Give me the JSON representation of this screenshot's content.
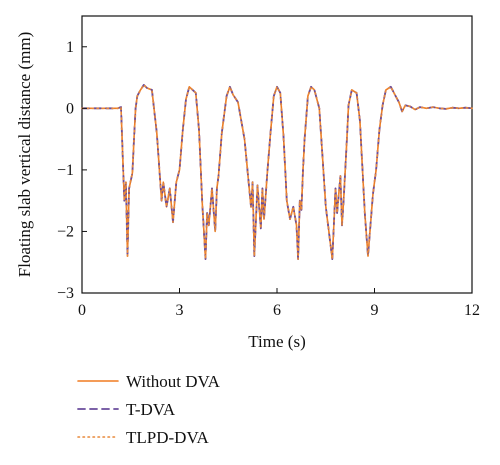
{
  "chart_data": {
    "type": "line",
    "title": "",
    "xlabel": "Time (s)",
    "ylabel": "Floating slab vertical distance (mm)",
    "xlim": [
      0,
      12
    ],
    "ylim": [
      -3,
      1.5
    ],
    "xticks": [
      0,
      3,
      6,
      9,
      12
    ],
    "xtick_labels": [
      "0",
      "3",
      "6",
      "9",
      "12"
    ],
    "yticks": [
      1,
      0,
      -1,
      -2,
      -3
    ],
    "ytick_labels": [
      "1",
      "0",
      "−1",
      "−2",
      "−3"
    ],
    "grid": false,
    "legend_position": "below plot, left",
    "series": [
      {
        "name": "Without DVA",
        "color": "#f07c21",
        "style": "solid",
        "x": [
          0,
          1.1,
          1.2,
          1.3,
          1.35,
          1.4,
          1.45,
          1.55,
          1.6,
          1.65,
          1.7,
          1.8,
          1.9,
          2.0,
          2.15,
          2.3,
          2.45,
          2.5,
          2.55,
          2.6,
          2.7,
          2.8,
          2.9,
          3.0,
          3.1,
          3.2,
          3.3,
          3.5,
          3.6,
          3.7,
          3.8,
          3.85,
          3.9,
          4.0,
          4.1,
          4.15,
          4.2,
          4.3,
          4.45,
          4.55,
          4.65,
          4.8,
          5.0,
          5.2,
          5.25,
          5.3,
          5.4,
          5.5,
          5.55,
          5.6,
          5.7,
          5.8,
          5.9,
          6.0,
          6.1,
          6.2,
          6.3,
          6.4,
          6.5,
          6.6,
          6.65,
          6.7,
          6.75,
          6.8,
          6.85,
          6.95,
          7.05,
          7.15,
          7.3,
          7.5,
          7.7,
          7.8,
          7.85,
          7.95,
          8.0,
          8.05,
          8.15,
          8.2,
          8.3,
          8.45,
          8.55,
          8.7,
          8.8,
          8.95,
          9.05,
          9.15,
          9.25,
          9.35,
          9.5,
          9.65,
          9.75,
          9.85,
          9.95,
          10.1,
          10.25,
          10.4,
          10.6,
          10.8,
          11.0,
          11.2,
          11.4,
          11.6,
          11.8,
          12.0
        ],
        "y": [
          0,
          0,
          0.02,
          -1.5,
          -1.2,
          -2.4,
          -1.3,
          -1.05,
          -0.5,
          0.0,
          0.2,
          0.3,
          0.38,
          0.33,
          0.3,
          -0.4,
          -1.5,
          -1.2,
          -1.4,
          -1.6,
          -1.3,
          -1.85,
          -1.2,
          -1.0,
          -0.35,
          0.15,
          0.35,
          0.25,
          -0.35,
          -1.55,
          -2.45,
          -1.7,
          -1.9,
          -1.3,
          -2.0,
          -1.3,
          -1.1,
          -0.4,
          0.2,
          0.35,
          0.22,
          0.1,
          -0.5,
          -1.6,
          -1.2,
          -2.4,
          -1.25,
          -1.95,
          -1.3,
          -1.8,
          -1.05,
          -0.4,
          0.2,
          0.35,
          0.25,
          -0.45,
          -1.5,
          -1.8,
          -1.6,
          -1.9,
          -2.45,
          -1.5,
          -1.65,
          -1.0,
          -0.5,
          0.2,
          0.35,
          0.3,
          0.0,
          -1.6,
          -2.45,
          -1.3,
          -1.7,
          -1.1,
          -1.9,
          -1.5,
          -0.5,
          0.05,
          0.3,
          0.25,
          -0.2,
          -1.7,
          -2.4,
          -1.4,
          -1.0,
          -0.35,
          0.05,
          0.3,
          0.35,
          0.2,
          0.1,
          -0.05,
          0.05,
          0.03,
          -0.02,
          0.02,
          0.0,
          0.02,
          0.0,
          -0.01,
          0.01,
          0.0,
          0.01,
          0.0
        ]
      },
      {
        "name": "T-DVA",
        "color": "#6a4c9c",
        "style": "dashed",
        "x": [
          0,
          1.1,
          1.2,
          1.3,
          1.35,
          1.4,
          1.45,
          1.55,
          1.6,
          1.65,
          1.7,
          1.8,
          1.9,
          2.0,
          2.15,
          2.3,
          2.45,
          2.5,
          2.55,
          2.6,
          2.7,
          2.8,
          2.9,
          3.0,
          3.1,
          3.2,
          3.3,
          3.5,
          3.6,
          3.7,
          3.8,
          3.85,
          3.9,
          4.0,
          4.1,
          4.15,
          4.2,
          4.3,
          4.45,
          4.55,
          4.65,
          4.8,
          5.0,
          5.2,
          5.25,
          5.3,
          5.4,
          5.5,
          5.55,
          5.6,
          5.7,
          5.8,
          5.9,
          6.0,
          6.1,
          6.2,
          6.3,
          6.4,
          6.5,
          6.6,
          6.65,
          6.7,
          6.75,
          6.8,
          6.85,
          6.95,
          7.05,
          7.15,
          7.3,
          7.5,
          7.7,
          7.8,
          7.85,
          7.95,
          8.0,
          8.05,
          8.15,
          8.2,
          8.3,
          8.45,
          8.55,
          8.7,
          8.8,
          8.95,
          9.05,
          9.15,
          9.25,
          9.35,
          9.5,
          9.65,
          9.75,
          9.85,
          9.95,
          10.1,
          10.25,
          10.4,
          10.6,
          10.8,
          11.0,
          11.2,
          11.4,
          11.6,
          11.8,
          12.0
        ],
        "y": [
          0,
          0,
          0.02,
          -1.5,
          -1.2,
          -2.4,
          -1.3,
          -1.05,
          -0.5,
          0.0,
          0.2,
          0.3,
          0.38,
          0.33,
          0.3,
          -0.4,
          -1.5,
          -1.2,
          -1.4,
          -1.6,
          -1.3,
          -1.85,
          -1.2,
          -1.0,
          -0.35,
          0.15,
          0.35,
          0.25,
          -0.35,
          -1.55,
          -2.45,
          -1.7,
          -1.9,
          -1.3,
          -2.0,
          -1.3,
          -1.1,
          -0.4,
          0.2,
          0.35,
          0.22,
          0.1,
          -0.5,
          -1.6,
          -1.2,
          -2.4,
          -1.25,
          -1.95,
          -1.3,
          -1.8,
          -1.05,
          -0.4,
          0.2,
          0.35,
          0.25,
          -0.45,
          -1.5,
          -1.8,
          -1.6,
          -1.9,
          -2.45,
          -1.5,
          -1.65,
          -1.0,
          -0.5,
          0.2,
          0.35,
          0.3,
          0.0,
          -1.6,
          -2.45,
          -1.3,
          -1.7,
          -1.1,
          -1.9,
          -1.5,
          -0.5,
          0.05,
          0.3,
          0.25,
          -0.2,
          -1.7,
          -2.4,
          -1.4,
          -1.0,
          -0.35,
          0.05,
          0.3,
          0.35,
          0.2,
          0.1,
          -0.05,
          0.05,
          0.03,
          -0.02,
          0.02,
          0.0,
          0.02,
          0.0,
          -0.01,
          0.01,
          0.0,
          0.01,
          0.0
        ]
      },
      {
        "name": "TLPD-DVA",
        "color": "#e8893a",
        "style": "dotted",
        "x": [
          0,
          1.1,
          1.2,
          1.3,
          1.35,
          1.4,
          1.45,
          1.55,
          1.6,
          1.65,
          1.7,
          1.8,
          1.9,
          2.0,
          2.15,
          2.3,
          2.45,
          2.5,
          2.55,
          2.6,
          2.7,
          2.8,
          2.9,
          3.0,
          3.1,
          3.2,
          3.3,
          3.5,
          3.6,
          3.7,
          3.8,
          3.85,
          3.9,
          4.0,
          4.1,
          4.15,
          4.2,
          4.3,
          4.45,
          4.55,
          4.65,
          4.8,
          5.0,
          5.2,
          5.25,
          5.3,
          5.4,
          5.5,
          5.55,
          5.6,
          5.7,
          5.8,
          5.9,
          6.0,
          6.1,
          6.2,
          6.3,
          6.4,
          6.5,
          6.6,
          6.65,
          6.7,
          6.75,
          6.8,
          6.85,
          6.95,
          7.05,
          7.15,
          7.3,
          7.5,
          7.7,
          7.8,
          7.85,
          7.95,
          8.0,
          8.05,
          8.15,
          8.2,
          8.3,
          8.45,
          8.55,
          8.7,
          8.8,
          8.95,
          9.05,
          9.15,
          9.25,
          9.35,
          9.5,
          9.65,
          9.75,
          9.85,
          9.95,
          10.1,
          10.25,
          10.4,
          10.6,
          10.8,
          11.0,
          11.2,
          11.4,
          11.6,
          11.8,
          12.0
        ],
        "y": [
          0,
          0,
          0.02,
          -1.5,
          -1.2,
          -2.4,
          -1.3,
          -1.05,
          -0.5,
          0.0,
          0.2,
          0.3,
          0.38,
          0.33,
          0.3,
          -0.4,
          -1.5,
          -1.2,
          -1.4,
          -1.6,
          -1.3,
          -1.85,
          -1.2,
          -1.0,
          -0.35,
          0.15,
          0.35,
          0.25,
          -0.35,
          -1.55,
          -2.45,
          -1.7,
          -1.9,
          -1.3,
          -2.0,
          -1.3,
          -1.1,
          -0.4,
          0.2,
          0.35,
          0.22,
          0.1,
          -0.5,
          -1.6,
          -1.2,
          -2.4,
          -1.25,
          -1.95,
          -1.3,
          -1.8,
          -1.05,
          -0.4,
          0.2,
          0.35,
          0.25,
          -0.45,
          -1.5,
          -1.8,
          -1.6,
          -1.9,
          -2.45,
          -1.5,
          -1.65,
          -1.0,
          -0.5,
          0.2,
          0.35,
          0.3,
          0.0,
          -1.6,
          -2.45,
          -1.3,
          -1.7,
          -1.1,
          -1.9,
          -1.5,
          -0.5,
          0.05,
          0.3,
          0.25,
          -0.2,
          -1.7,
          -2.4,
          -1.4,
          -1.0,
          -0.35,
          0.05,
          0.3,
          0.35,
          0.2,
          0.1,
          -0.05,
          0.05,
          0.03,
          -0.02,
          0.02,
          0.0,
          0.02,
          0.0,
          -0.01,
          0.01,
          0.0,
          0.01,
          0.0
        ]
      }
    ]
  }
}
